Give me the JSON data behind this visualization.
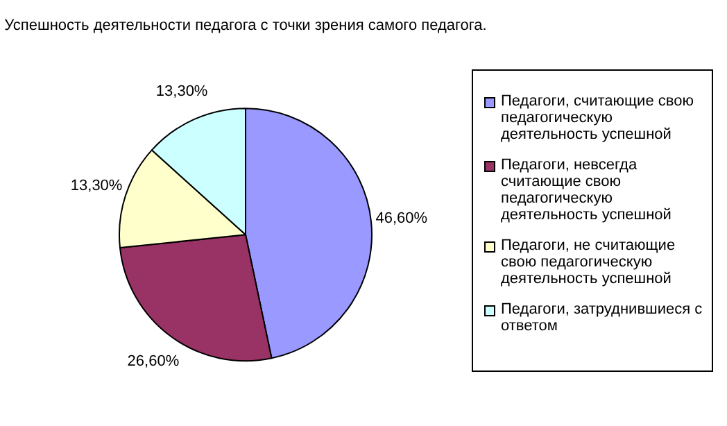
{
  "chart_data": {
    "type": "pie",
    "title": "Успешность деятельности педагога с точки зрения самого педагога.",
    "categories": [
      "Педагоги, считающие свою педагогическую деятельность успешной",
      "Педагоги, невсегда считающие свою педагогическую деятельность успешной",
      "Педагоги, не считающие свою педагогическую деятельность успешной",
      "Педагоги, затруднившиеся с ответом"
    ],
    "values": [
      46.6,
      26.6,
      13.3,
      13.3
    ],
    "value_labels": [
      "46,60%",
      "26,60%",
      "13,30%",
      "13,30%"
    ],
    "colors": [
      "#9999ff",
      "#993366",
      "#ffffcc",
      "#ccffff"
    ],
    "legend": "right"
  }
}
